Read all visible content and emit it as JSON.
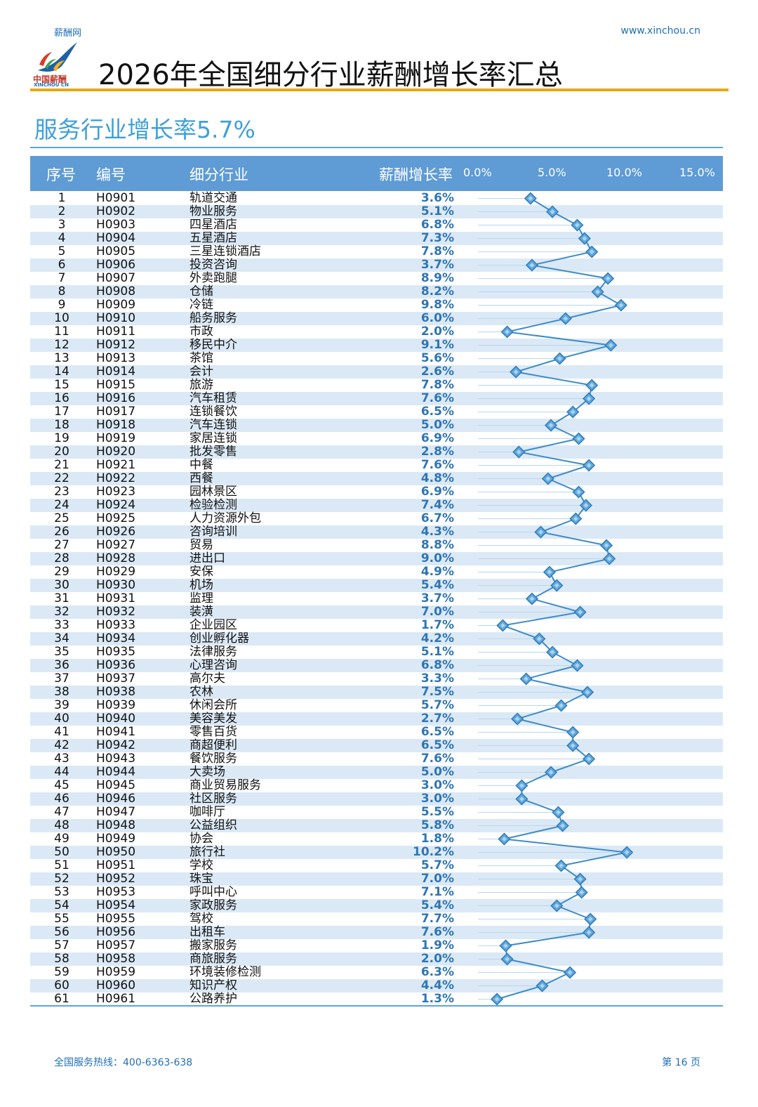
{
  "header": {
    "brand": "薪酬网",
    "url": "www.xinchou.cn",
    "logo_text_cn": "中国薪酬",
    "logo_text_en": "XINCHOU CN",
    "title": "2026年全国细分行业薪酬增长率汇总"
  },
  "section": {
    "title": "服务行业增长率5.7%"
  },
  "table": {
    "columns": [
      "序号",
      "编号",
      "细分行业",
      "薪酬增长率"
    ],
    "axis_ticks": [
      "0.0%",
      "5.0%",
      "10.0%",
      "15.0%"
    ]
  },
  "chart_data": {
    "type": "line",
    "orientation": "horizontal",
    "xlim": [
      0,
      15
    ],
    "axis_ticks": [
      "0.0%",
      "5.0%",
      "10.0%",
      "15.0%"
    ],
    "series": [
      {
        "values": [
          3.6,
          5.1,
          6.8,
          7.3,
          7.8,
          3.7,
          8.9,
          8.2,
          9.8,
          6.0,
          2.0,
          9.1,
          5.6,
          2.6,
          7.8,
          7.6,
          6.5,
          5.0,
          6.9,
          2.8,
          7.6,
          4.8,
          6.9,
          7.4,
          6.7,
          4.3,
          8.8,
          9.0,
          4.9,
          5.4,
          3.7,
          7.0,
          1.7,
          4.2,
          5.1,
          6.8,
          3.3,
          7.5,
          5.7,
          2.7,
          6.5,
          6.5,
          7.6,
          5.0,
          3.0,
          3.0,
          5.5,
          5.8,
          1.8,
          10.2,
          5.7,
          7.0,
          7.1,
          5.4,
          7.7,
          7.6,
          1.9,
          2.0,
          6.3,
          4.4,
          1.3
        ]
      }
    ],
    "rows": [
      {
        "no": "1",
        "code": "H0901",
        "industry": "轨道交通",
        "rate": "3.6%"
      },
      {
        "no": "2",
        "code": "H0902",
        "industry": "物业服务",
        "rate": "5.1%"
      },
      {
        "no": "3",
        "code": "H0903",
        "industry": "四星酒店",
        "rate": "6.8%"
      },
      {
        "no": "4",
        "code": "H0904",
        "industry": "五星酒店",
        "rate": "7.3%"
      },
      {
        "no": "5",
        "code": "H0905",
        "industry": "三星连锁酒店",
        "rate": "7.8%"
      },
      {
        "no": "6",
        "code": "H0906",
        "industry": "投资咨询",
        "rate": "3.7%"
      },
      {
        "no": "7",
        "code": "H0907",
        "industry": "外卖跑腿",
        "rate": "8.9%"
      },
      {
        "no": "8",
        "code": "H0908",
        "industry": "仓储",
        "rate": "8.2%"
      },
      {
        "no": "9",
        "code": "H0909",
        "industry": "冷链",
        "rate": "9.8%"
      },
      {
        "no": "10",
        "code": "H0910",
        "industry": "船务服务",
        "rate": "6.0%"
      },
      {
        "no": "11",
        "code": "H0911",
        "industry": "市政",
        "rate": "2.0%"
      },
      {
        "no": "12",
        "code": "H0912",
        "industry": "移民中介",
        "rate": "9.1%"
      },
      {
        "no": "13",
        "code": "H0913",
        "industry": "茶馆",
        "rate": "5.6%"
      },
      {
        "no": "14",
        "code": "H0914",
        "industry": "会计",
        "rate": "2.6%"
      },
      {
        "no": "15",
        "code": "H0915",
        "industry": "旅游",
        "rate": "7.8%"
      },
      {
        "no": "16",
        "code": "H0916",
        "industry": "汽车租赁",
        "rate": "7.6%"
      },
      {
        "no": "17",
        "code": "H0917",
        "industry": "连锁餐饮",
        "rate": "6.5%"
      },
      {
        "no": "18",
        "code": "H0918",
        "industry": "汽车连锁",
        "rate": "5.0%"
      },
      {
        "no": "19",
        "code": "H0919",
        "industry": "家居连锁",
        "rate": "6.9%"
      },
      {
        "no": "20",
        "code": "H0920",
        "industry": "批发零售",
        "rate": "2.8%"
      },
      {
        "no": "21",
        "code": "H0921",
        "industry": "中餐",
        "rate": "7.6%"
      },
      {
        "no": "22",
        "code": "H0922",
        "industry": "西餐",
        "rate": "4.8%"
      },
      {
        "no": "23",
        "code": "H0923",
        "industry": "园林景区",
        "rate": "6.9%"
      },
      {
        "no": "24",
        "code": "H0924",
        "industry": "检验检测",
        "rate": "7.4%"
      },
      {
        "no": "25",
        "code": "H0925",
        "industry": "人力资源外包",
        "rate": "6.7%"
      },
      {
        "no": "26",
        "code": "H0926",
        "industry": "咨询培训",
        "rate": "4.3%"
      },
      {
        "no": "27",
        "code": "H0927",
        "industry": "贸易",
        "rate": "8.8%"
      },
      {
        "no": "28",
        "code": "H0928",
        "industry": "进出口",
        "rate": "9.0%"
      },
      {
        "no": "29",
        "code": "H0929",
        "industry": "安保",
        "rate": "4.9%"
      },
      {
        "no": "30",
        "code": "H0930",
        "industry": "机场",
        "rate": "5.4%"
      },
      {
        "no": "31",
        "code": "H0931",
        "industry": "监理",
        "rate": "3.7%"
      },
      {
        "no": "32",
        "code": "H0932",
        "industry": "装潢",
        "rate": "7.0%"
      },
      {
        "no": "33",
        "code": "H0933",
        "industry": "企业园区",
        "rate": "1.7%"
      },
      {
        "no": "34",
        "code": "H0934",
        "industry": "创业孵化器",
        "rate": "4.2%"
      },
      {
        "no": "35",
        "code": "H0935",
        "industry": "法律服务",
        "rate": "5.1%"
      },
      {
        "no": "36",
        "code": "H0936",
        "industry": "心理咨询",
        "rate": "6.8%"
      },
      {
        "no": "37",
        "code": "H0937",
        "industry": "高尔夫",
        "rate": "3.3%"
      },
      {
        "no": "38",
        "code": "H0938",
        "industry": "农林",
        "rate": "7.5%"
      },
      {
        "no": "39",
        "code": "H0939",
        "industry": "休闲会所",
        "rate": "5.7%"
      },
      {
        "no": "40",
        "code": "H0940",
        "industry": "美容美发",
        "rate": "2.7%"
      },
      {
        "no": "41",
        "code": "H0941",
        "industry": "零售百货",
        "rate": "6.5%"
      },
      {
        "no": "42",
        "code": "H0942",
        "industry": "商超便利",
        "rate": "6.5%"
      },
      {
        "no": "43",
        "code": "H0943",
        "industry": "餐饮服务",
        "rate": "7.6%"
      },
      {
        "no": "44",
        "code": "H0944",
        "industry": "大卖场",
        "rate": "5.0%"
      },
      {
        "no": "45",
        "code": "H0945",
        "industry": "商业贸易服务",
        "rate": "3.0%"
      },
      {
        "no": "46",
        "code": "H0946",
        "industry": "社区服务",
        "rate": "3.0%"
      },
      {
        "no": "47",
        "code": "H0947",
        "industry": "咖啡厅",
        "rate": "5.5%"
      },
      {
        "no": "48",
        "code": "H0948",
        "industry": "公益组织",
        "rate": "5.8%"
      },
      {
        "no": "49",
        "code": "H0949",
        "industry": "协会",
        "rate": "1.8%"
      },
      {
        "no": "50",
        "code": "H0950",
        "industry": "旅行社",
        "rate": "10.2%"
      },
      {
        "no": "51",
        "code": "H0951",
        "industry": "学校",
        "rate": "5.7%"
      },
      {
        "no": "52",
        "code": "H0952",
        "industry": "珠宝",
        "rate": "7.0%"
      },
      {
        "no": "53",
        "code": "H0953",
        "industry": "呼叫中心",
        "rate": "7.1%"
      },
      {
        "no": "54",
        "code": "H0954",
        "industry": "家政服务",
        "rate": "5.4%"
      },
      {
        "no": "55",
        "code": "H0955",
        "industry": "驾校",
        "rate": "7.7%"
      },
      {
        "no": "56",
        "code": "H0956",
        "industry": "出租车",
        "rate": "7.6%"
      },
      {
        "no": "57",
        "code": "H0957",
        "industry": "搬家服务",
        "rate": "1.9%"
      },
      {
        "no": "58",
        "code": "H0958",
        "industry": "商旅服务",
        "rate": "2.0%"
      },
      {
        "no": "59",
        "code": "H0959",
        "industry": "环境装修检测",
        "rate": "6.3%"
      },
      {
        "no": "60",
        "code": "H0960",
        "industry": "知识产权",
        "rate": "4.4%"
      },
      {
        "no": "61",
        "code": "H0961",
        "industry": "公路养护",
        "rate": "1.3%"
      }
    ]
  },
  "colors": {
    "header_bg": "#5f9bd5",
    "accent_gold": "#e6a817",
    "section_title": "#3fa0d6",
    "rate_text": "#2e75b6",
    "alt_row": "#dbe9f6",
    "marker": "#5fa8dc",
    "line": "#3d8cc9"
  },
  "footer": {
    "hotline": "全国服务热线：400-6363-638",
    "page": "第 16 页"
  }
}
